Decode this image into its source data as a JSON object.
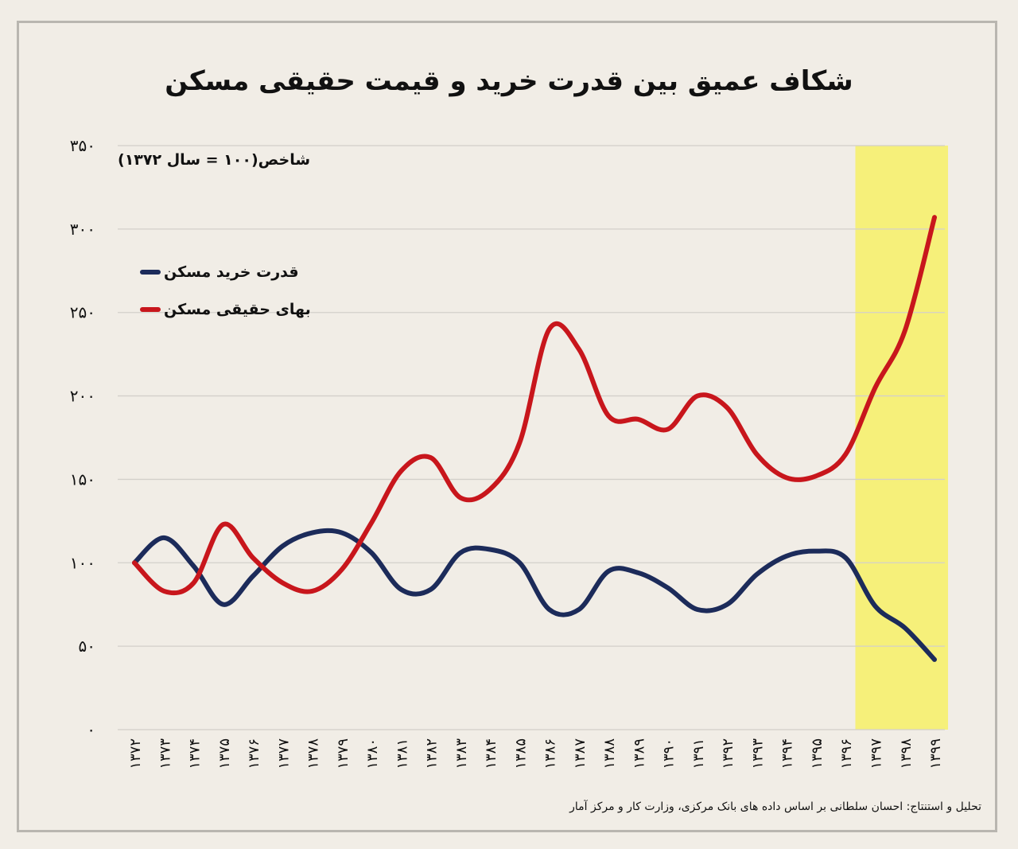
{
  "title": "شکاف عمیق بین قدرت خرید و قیمت حقیقی مسکن",
  "subtitle": "شاخص(۱۰۰ = سال ۱۳۷۲)",
  "source": "تحلیل و استنتاج: احسان سلطانی بر اساس داده های بانک مرکزی، وزارت کار و مرکز آمار",
  "colors": {
    "purchasing_power": "#1c2b5a",
    "real_price": "#c8161c",
    "highlight": "#f6f07a",
    "grid": "#d3d0ca"
  },
  "chart_data": {
    "type": "line",
    "title": "شکاف عمیق بین قدرت خرید و قیمت حقیقی مسکن",
    "ylabel": "شاخص(۱۰۰ = سال ۱۳۷۲)",
    "xlabel": "",
    "ylim": [
      0,
      350
    ],
    "yticks": [
      0,
      50,
      100,
      150,
      200,
      250,
      300,
      350
    ],
    "ytick_labels": [
      "۰",
      "۵۰",
      "۱۰۰",
      "۱۵۰",
      "۲۰۰",
      "۲۵۰",
      "۳۰۰",
      "۳۵۰"
    ],
    "categories": [
      "۱۳۷۲",
      "۱۳۷۳",
      "۱۳۷۴",
      "۱۳۷۵",
      "۱۳۷۶",
      "۱۳۷۷",
      "۱۳۷۸",
      "۱۳۷۹",
      "۱۳۸۰",
      "۱۳۸۱",
      "۱۳۸۲",
      "۱۳۸۳",
      "۱۳۸۴",
      "۱۳۸۵",
      "۱۳۸۶",
      "۱۳۸۷",
      "۱۳۸۸",
      "۱۳۸۹",
      "۱۳۹۰",
      "۱۳۹۱",
      "۱۳۹۲",
      "۱۳۹۳",
      "۱۳۹۴",
      "۱۳۹۵",
      "۱۳۹۶",
      "۱۳۹۷",
      "۱۳۹۸",
      "۱۳۹۹"
    ],
    "highlight_range": [
      "۱۳۹۷",
      "۱۳۹۹"
    ],
    "grid": true,
    "legend_position": "top-left",
    "series": [
      {
        "name": "قدرت خرید مسکن",
        "color": "#1c2b5a",
        "values": [
          100,
          115,
          98,
          75,
          92,
          110,
          118,
          118,
          106,
          84,
          84,
          106,
          108,
          100,
          72,
          72,
          95,
          94,
          85,
          72,
          75,
          93,
          104,
          107,
          103,
          74,
          61,
          42
        ]
      },
      {
        "name": "بهای حقیقی مسکن",
        "color": "#c8161c",
        "values": [
          100,
          83,
          88,
          123,
          103,
          88,
          83,
          96,
          124,
          155,
          163,
          139,
          144,
          172,
          240,
          228,
          188,
          186,
          180,
          200,
          193,
          165,
          151,
          152,
          165,
          205,
          239,
          307
        ]
      }
    ]
  }
}
